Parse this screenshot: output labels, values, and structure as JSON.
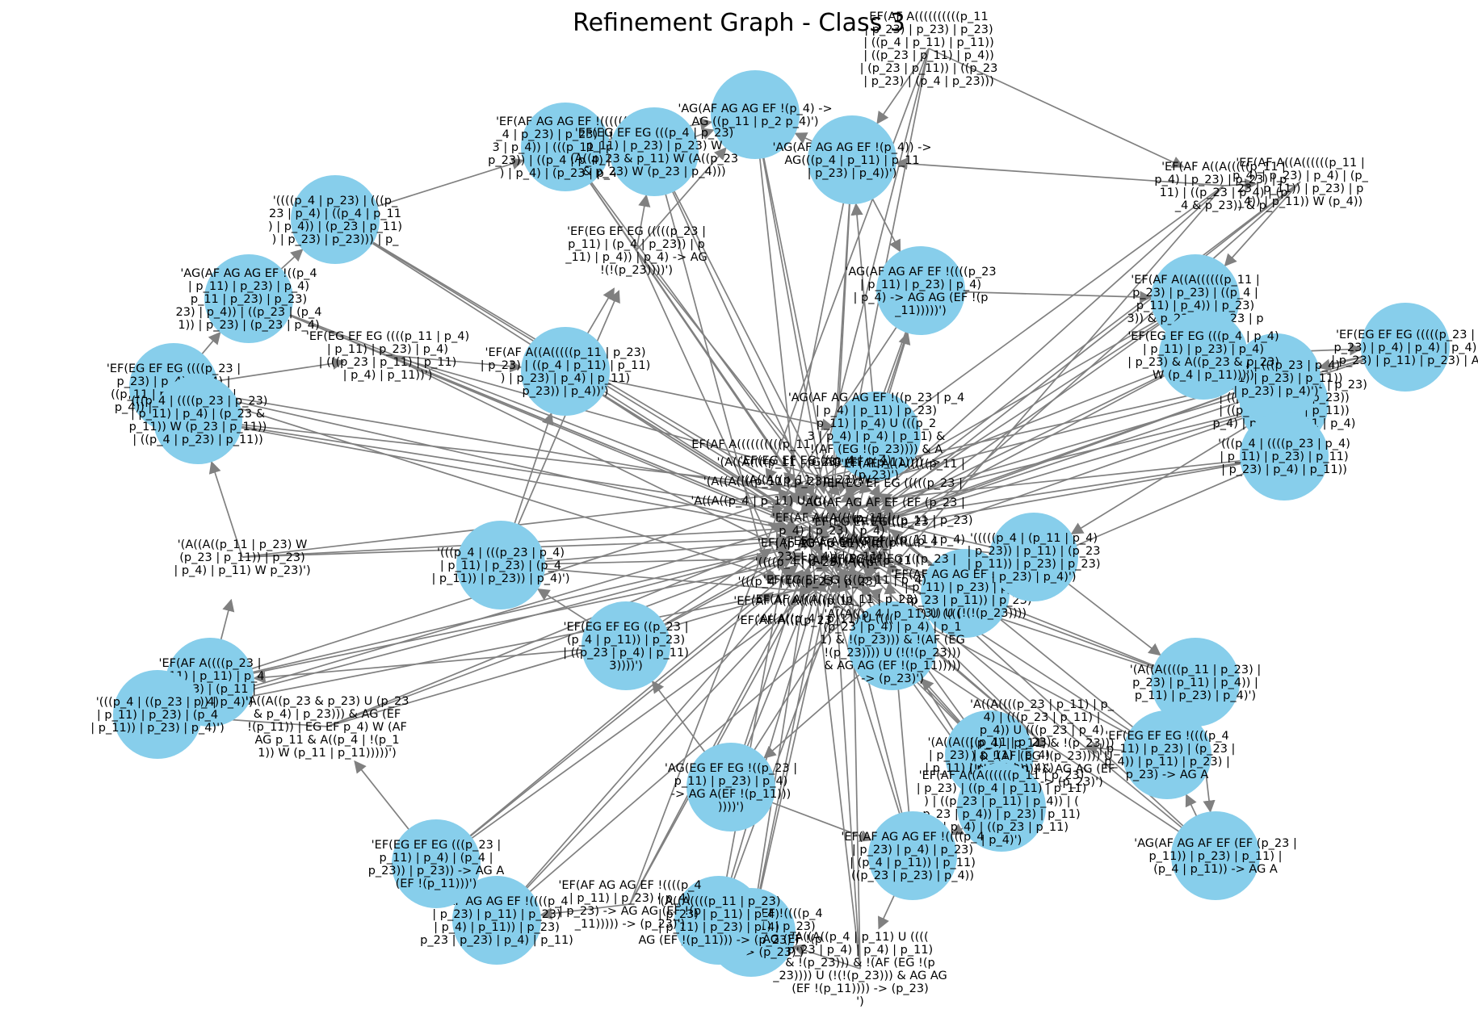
{
  "figure": {
    "title": "Refinement Graph - Class 3",
    "node_color": "#87ceeb",
    "edge_color": "#808080",
    "background": "#ffffff"
  },
  "nodes": [
    {
      "id": "n1",
      "lines": [
        "EF(AF A((((((((((p_11",
        "| p_23) | p_23) | p_23)",
        "| ((p_4 | p_11) | p_11))",
        "| ((p_23 | p_11) | p_4))",
        "| (p_23 | p_11)) | ((p_23",
        "| p_23) | (p_4 | p_23)))"
      ],
      "circle": false
    },
    {
      "id": "n2",
      "lines": [
        "'AG(AF AG AG EF !(p_4) ->",
        "AG ((p_11 | p_2 p_4)')"
      ],
      "circle": true
    },
    {
      "id": "n3",
      "lines": [
        "'EF(AF AG AG EF !((((((p",
        "_4 | p_23) | p_23) | (p_2",
        "3 | p_4)) | (((p_11 | p_11)",
        "p_23)) | ((p_4 | p_4) | p_11",
        ") | p_4) | (p_23 | p_4)))"
      ],
      "circle": true
    },
    {
      "id": "n4",
      "lines": [
        "'EF(EG EF EG (((p_4 | p_23)",
        "p_11) | p_23) | p_23) W",
        "(A((p_23 & p_11) W (A((p_23",
        "& p_23) W (p_23 | p_4)))"
      ],
      "circle": true
    },
    {
      "id": "n5",
      "lines": [
        "'EF(AF A((A(((((p_11 |",
        "p_4) | p_23) | p_23) | p_",
        "11) | ((p_23 | p_4) | (p",
        "_4 & p_23)) & p_"
      ],
      "circle": false
    },
    {
      "id": "n6",
      "lines": [
        "'AG(AF AG AG EF !(p_4)) ->",
        "AG(((p_4 | p_11) | p_11",
        "| p_23) | p_4))')"
      ],
      "circle": true
    },
    {
      "id": "n7",
      "lines": [
        "'((((p_4 | p_23) | (((p_",
        "23 | p_4) | ((p_4 | p_11",
        ") | p_4)) | (p_23 | p_11)",
        ") | p_23) | p_23))) | p_"
      ],
      "circle": true
    },
    {
      "id": "n8",
      "lines": [
        "'AG(AF AG AG EF !((p_4",
        "| p_11) | p_23) | p_4)",
        "p_11 | p_23) | p_23)",
        "23) | p_4)) | ((p_23 | (p_4",
        "1)) | p_23) | (p_23 | p_4)"
      ],
      "circle": true
    },
    {
      "id": "n9",
      "lines": [
        "'EF(EG EF EG (((((p_23 |",
        "p_11) | (p_4 | p_23)) | p",
        "_11) | p_4)) | p_4) -> AG",
        "!(!(p_23))))')"
      ],
      "circle": false
    },
    {
      "id": "n10",
      "lines": [
        "'EF(EG EF EG ((((p_23 |",
        "p_23) | p_4) | p_4) |",
        "((p_11 | p_4) | (p_23 |",
        "p_4)) | p_11) | p_23)"
      ],
      "circle": true
    },
    {
      "id": "n11",
      "lines": [
        "'(((p_4 | ((((p_23 | p_23)",
        "| p_11) | p_4) | (p_23 &",
        "p_11)) W (p_23 | p_11))",
        "| ((p_4 | p_23) | p_11))"
      ],
      "circle": true
    },
    {
      "id": "n12",
      "lines": [
        "'EF(EG EF EG (((p_11 | p_23)",
        "| ((p_11 | (p_4 | p_23))",
        "| ((p_4 | p_23) | p_11))",
        "p_4) | p_4) | (p_11 | p_4)"
      ],
      "circle": true
    },
    {
      "id": "n13",
      "lines": [
        "'AG(AF AG AF EF (EF (p_23 |",
        "p_11)) | p_23) | p_11) |",
        "(p_4 | p_11)) -> AG A"
      ],
      "circle": true
    },
    {
      "id": "n14",
      "lines": [
        "'(((p_4 | (((p_23 | p_4)",
        "| p_11) | p_23) | (p_4",
        "| p_11)) | p_23)) | p_4)')"
      ],
      "circle": true
    },
    {
      "id": "n15",
      "lines": [
        "'EF(AF A((A((((((p_11 |",
        "p_23) | p_23) | ((p_4 |",
        "p_11) | p_4)) | p_23)",
        "3)) & p_23) W (p_23 | p"
      ],
      "circle": true
    },
    {
      "id": "n16",
      "lines": [
        "'(((p_4 | (((p_23 | p_4)",
        "| p_11) | p_23) | p_11))",
        "| p_23) | p_4)')"
      ],
      "circle": true
    },
    {
      "id": "n17",
      "lines": [
        "'EF(EG EF EG ((p_23 |",
        "(p_4 | p_11)) | p_23)",
        "| ((p_23 | p_4) | p_11)",
        "3))))')"
      ],
      "circle": true
    },
    {
      "id": "n18",
      "lines": [
        "'AG(EG EF EG !((p_23 |",
        "p_11) | p_23) | p_4)",
        "-> AG A(EF !(p_11)))",
        "))))')"
      ],
      "circle": true
    },
    {
      "id": "n19",
      "lines": [
        "'EF(AF A((((p_23 |",
        "p_11) | p_11) | p_4",
        "| p_23) | (p_11 |",
        "p_23))) | p_4)')"
      ],
      "circle": true
    },
    {
      "id": "n20",
      "lines": [
        "'(((p_4 | ((p_23 | p_4)",
        "| p_11) | p_23) | (p_4",
        "| p_11)) | p_23) | p_4)')"
      ],
      "circle": true
    },
    {
      "id": "n21",
      "lines": [
        "'EF(AF AG AG EF !(((((p_4",
        "| p_11) | p_23) | p_4)",
        "| (p_23 | p_11)) | p_23)",
        "p_23)) U (!(!(p_23))))"
      ],
      "circle": true
    },
    {
      "id": "n22",
      "lines": [
        "'EF(EG EF EG !((((p_4",
        "| p_11) | p_23) | (p_23 |",
        "p_4)) | p_11) | p_23) |",
        "p_23) -> AG A"
      ],
      "circle": true
    },
    {
      "id": "n23",
      "lines": [
        "'(A((A((((p_11 | p_23)",
        "| p_23) | p_11) | p_4)",
        "| p_11) | p_23) | p_4)')"
      ],
      "circle": true
    },
    {
      "id": "n24",
      "lines": [
        "'EF(AF AG AG EF !((((p_4",
        "| p_23) | p_11) | p_23)",
        "| p_23) -> AG AG (EF !(p",
        "_11)))) -> (p_23)')"
      ],
      "circle": true
    },
    {
      "id": "n25",
      "lines": [
        "'EF(AF A((A((((((p_11 |",
        "p_4) | p_23) | p_4) | (p_",
        "23 | p_11)) | p_23) | p",
        "_4)) | p_11)) W (p_4))"
      ],
      "circle": false
    },
    {
      "id": "n26",
      "lines": [
        "'(((p_4 | ((((p_23 | p_4)",
        "| p_11) | p_23) | p_11)",
        "| p_23) | p_4) | p_11))"
      ],
      "circle": true
    },
    {
      "id": "n27",
      "lines": [
        "'(A((A((((p_11 | p_23) |",
        "p_23) | p_11) | p_4)) |",
        "p_11) | p_23) | p_4)')"
      ],
      "circle": true
    },
    {
      "id": "n28",
      "lines": [
        "'AG(AF AG AG EF !((p_23 | p_4",
        "| p_4) | p_11) | p_23)",
        "p_11) | p_4) U (((p_2",
        "3 | p_4) | p_4) | p_11) &",
        "!(AF (EG !(p_23)))) & A",
        "G AG (EF !(p_11)))) ->",
        "(p_23)')"
      ],
      "circle": true
    },
    {
      "id": "n29",
      "lines": [
        "'EF(EG EF EG ((((p_11 | p_4)",
        "| p_11) | p_23) | p_4)",
        "| (((p_23 | p_11) | p_11)",
        "| p_4) | p_11))')"
      ],
      "circle": false
    },
    {
      "id": "n30",
      "lines": [
        "'AG(AF AG AF EF !((((p_23",
        "| p_11) | p_23) | p_4)",
        "| p_4) -> AG AG (EF !(p",
        "_11)))))')"
      ],
      "circle": true
    },
    {
      "id": "n31",
      "lines": [
        "'A((A((p_4 | p_11) U ((((",
        "(p_23 | p_4) | p_4) | p_1",
        "1) & !(p_23))) & !(AF (EG",
        "!(p_23)))) U (!(!(p_23)))",
        "& AG AG (EF !(p_11)))))",
        "-> (p_23)')"
      ],
      "circle": true
    },
    {
      "id": "n32",
      "lines": [
        "'A((A((((p_23 | p_11) | p_",
        "4) | (((p_23 | p_11) |",
        "p_4)) U (((p_23 | p_4)",
        "| p_4) | p_11) & !(p_23)))",
        ") & !(AF (EG !(p_23)))) U",
        "(!(!(p_23)))) & AG AG (EF",
        "!(p_11)))) -> (p_23)')"
      ],
      "circle": false
    },
    {
      "id": "n33",
      "lines": [
        "'EF(AF A((A((((((p_11 | p_23)",
        "| p_23) | ((p_4 | p_11) | p_11)",
        ") | ((p_23 | p_11) | p_4)) | (",
        "p_23 | p_4)) | p_23) | p_11)",
        ") | p_4) | ((p_23 | p_11)",
        "| p_4)')"
      ],
      "circle": true
    },
    {
      "id": "n34",
      "lines": [
        "'A((A((p_23 & p_23) U (p_23",
        "& p_4) | p_23))) & AG (EF",
        "!(p_11)) | EG EF p_4) W (AF",
        "AG p_11 & A((p_4 | !(p_1",
        "1)) W (p_11 | p_11)))))')"
      ],
      "circle": false
    },
    {
      "id": "n35",
      "lines": [
        "'(A((A((((p_11 | p_23)",
        "| p_23) | p_11) | p_4)",
        "| p_11) | p_23) | p_4)",
        "AG (EF !(p_11))) -> (p_23)')"
      ],
      "circle": true
    },
    {
      "id": "n36",
      "lines": [
        "'EF(AF AG AG EF !((((p_4",
        "| p_11) | p_23) | p_4)",
        "| p_23) -> AG AG (EF !(p",
        "_11))))) -> (p_23)')"
      ],
      "circle": false
    },
    {
      "id": "n37",
      "lines": [
        "'A((A((p_4 | p_11) U ((((",
        "p_23 | p_4) | p_4) | p_11)",
        "& !(p_23))) & !(AF (EG !(p",
        "_23)))) U (!(!(p_23))) & AG AG",
        "(EF !(p_11)))) -> (p_23)",
        "')"
      ],
      "circle": false
    },
    {
      "id": "n38",
      "lines": [
        "'EF(AF AG AG EF !((((p_4",
        "| p_23) | p_11) | p_23)",
        "| p_4) | p_11)) | p_23)",
        "p_23 | p_23) | p_4) | p_11)"
      ],
      "circle": true
    },
    {
      "id": "n39",
      "lines": [
        "'(((((p_4 | (p_11 | p_4)",
        "| p_23)) | p_11) | (p_23",
        "| p_11)) | p_23) | p_23)",
        "| p_23) | p_4)')"
      ],
      "circle": true
    },
    {
      "id": "n40",
      "lines": [
        "'EF(EG EF EG (((((p_23 |",
        "p_23) | p_4) | p_4) | p_4)",
        "| p_23) | p_11) | p_23) | A"
      ],
      "circle": true
    },
    {
      "id": "n41",
      "lines": [
        "'EF(EG EF EG (((p_4 | p_4)",
        "| p_11) | p_23) | p_4)",
        "| p_23) & A((p_23 & p_23)",
        "W (p_4 | p_11)))')"
      ],
      "circle": true
    },
    {
      "id": "n42",
      "lines": [
        "'EF(AF A((A(((((p_11 | p_23)",
        "| p_23) | ((p_4 | p_11) | p_11)",
        ") | p_23) | p_4) | p_11)",
        "p_23)) | p_4))')"
      ],
      "circle": true
    },
    {
      "id": "n43",
      "lines": [
        "'EF(EG EF EG (((p_23 |",
        "p_11) | p_4) | (p_4 |",
        "p_23)) | p_23)) -> AG A",
        "(EF !(p_11)))')"
      ],
      "circle": true
    },
    {
      "id": "n44",
      "lines": [
        "'EF(AF AG AG EF !((((p_4",
        "| p_23) | p_4) | p_23)",
        "| (p_4 | p_11)) | p_11)",
        "((p_23 | p_23) | p_4))"
      ],
      "circle": true
    },
    {
      "id": "n45",
      "lines": [
        "'(A((A((p_11 | p_23) W",
        "(p_23 | p_11)) | p_23)",
        "| p_4) | p_11) W p_23)')"
      ],
      "circle": false
    },
    {
      "id": "hub",
      "lines": [
        "'EF(AF A((A((((p_11 |",
        "p_4) | p_23) | p_4)",
        "| (p_23 | p_11)) | p_",
        "23) | p_4)) | p_11))"
      ],
      "circle": false
    }
  ]
}
